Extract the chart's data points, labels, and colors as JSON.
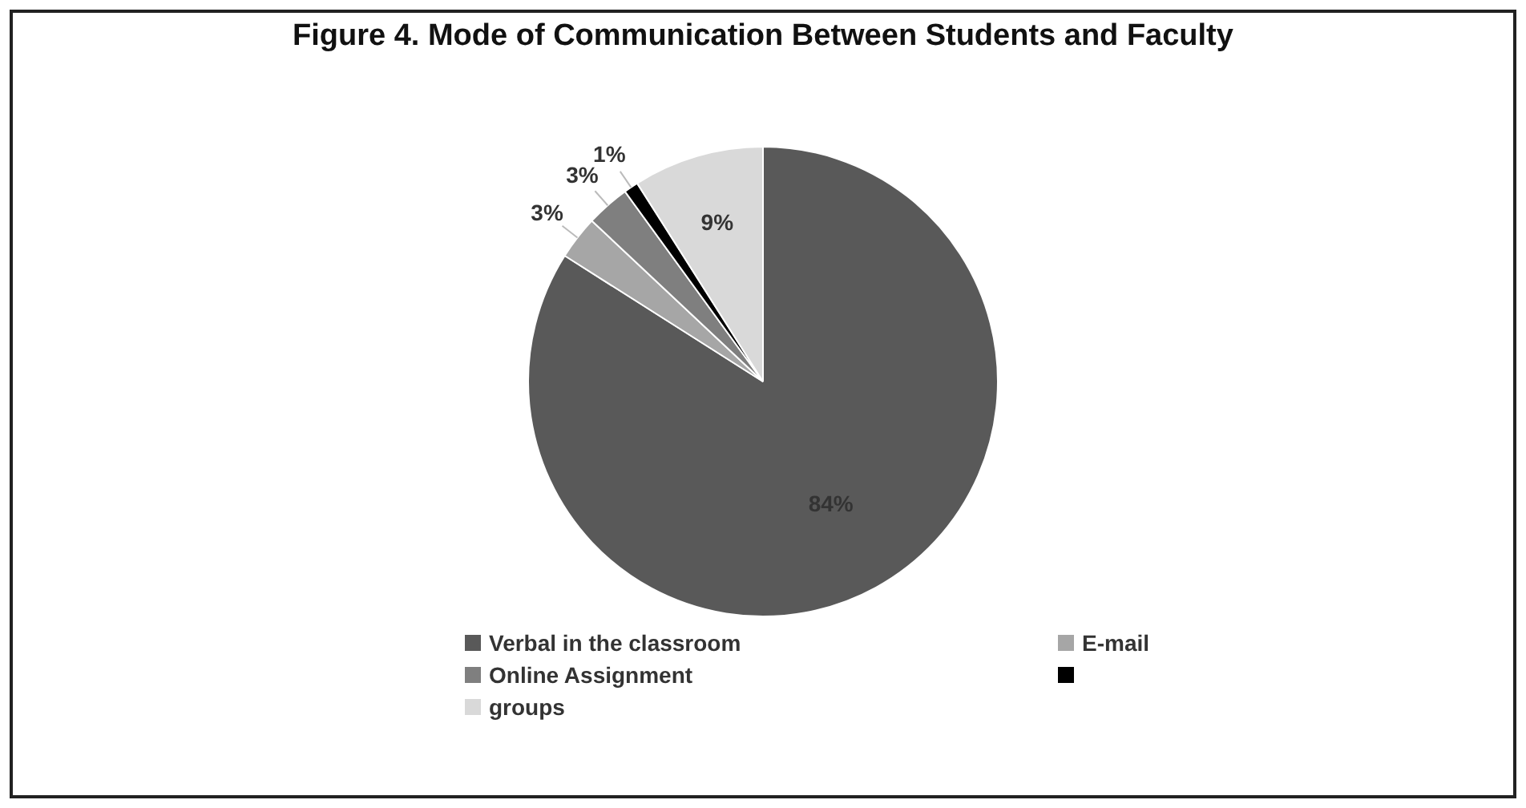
{
  "chart_data": {
    "type": "pie",
    "title": "Figure 4. Mode of Communication Between Students and Faculty",
    "categories": [
      "Verbal in the classroom",
      "E-mail",
      "Online Assignment",
      null,
      "groups"
    ],
    "values": [
      84,
      3,
      3,
      1,
      9
    ],
    "colors": [
      "#595959",
      "#a6a6a6",
      "#7f7f7f",
      "#000000",
      "#d9d9d9"
    ],
    "value_labels": [
      "84%",
      "3%",
      "3%",
      "1%",
      "9%"
    ],
    "legend": "bottom"
  }
}
